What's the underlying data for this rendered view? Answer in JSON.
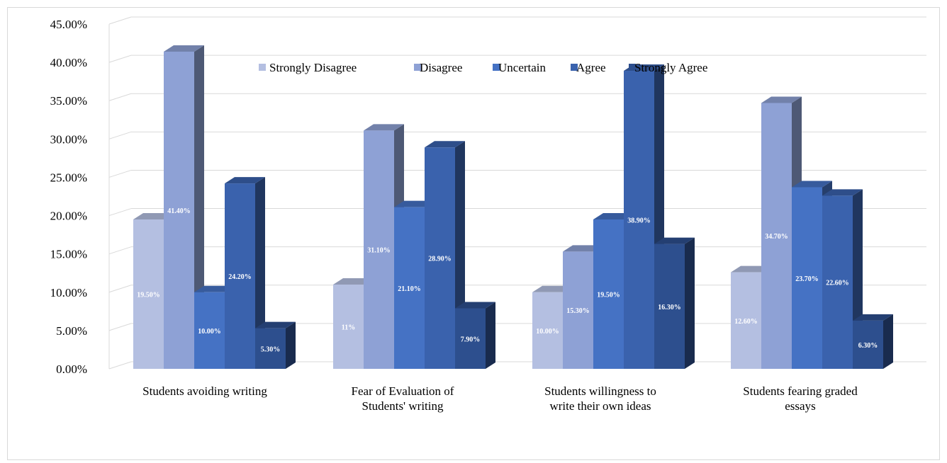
{
  "chart_data": {
    "type": "bar",
    "style": "3d-clustered-column",
    "categories": [
      [
        "Students avoiding writing"
      ],
      [
        "Fear of Evaluation of",
        "Students' writing"
      ],
      [
        "Students willingness to",
        "write their own ideas"
      ],
      [
        "Students fearing graded",
        "essays"
      ]
    ],
    "series": [
      {
        "name": "Strongly Disagree",
        "color": "#b4bfe1",
        "values": [
          19.5,
          11,
          10.0,
          12.6
        ],
        "labels": [
          "19.50%",
          "11%",
          "10.00%",
          "12.60%"
        ]
      },
      {
        "name": "Disagree",
        "color": "#8ea1d5",
        "values": [
          41.4,
          31.1,
          15.3,
          34.7
        ],
        "labels": [
          "41.40%",
          "31.10%",
          "15.30%",
          "34.70%"
        ]
      },
      {
        "name": "Uncertain",
        "color": "#4572c4",
        "values": [
          10.0,
          21.1,
          19.5,
          23.7
        ],
        "labels": [
          "10.00%",
          "21.10%",
          "19.50%",
          "23.70%"
        ]
      },
      {
        "name": "Agree",
        "color": "#3a62ad",
        "values": [
          24.2,
          28.9,
          38.9,
          22.6
        ],
        "labels": [
          "24.20%",
          "28.90%",
          "38.90%",
          "22.60%"
        ]
      },
      {
        "name": "Strongly Agree",
        "color": "#2d4f8e",
        "values": [
          5.3,
          7.9,
          16.3,
          6.3
        ],
        "labels": [
          "5.30%",
          "7.90%",
          "16.30%",
          "6.30%"
        ]
      }
    ],
    "y_ticks": [
      "0.00%",
      "5.00%",
      "10.00%",
      "15.00%",
      "20.00%",
      "25.00%",
      "30.00%",
      "35.00%",
      "40.00%",
      "45.00%"
    ],
    "ylim": [
      0,
      45
    ],
    "grid": true,
    "legend_position": "top-center-inside"
  }
}
